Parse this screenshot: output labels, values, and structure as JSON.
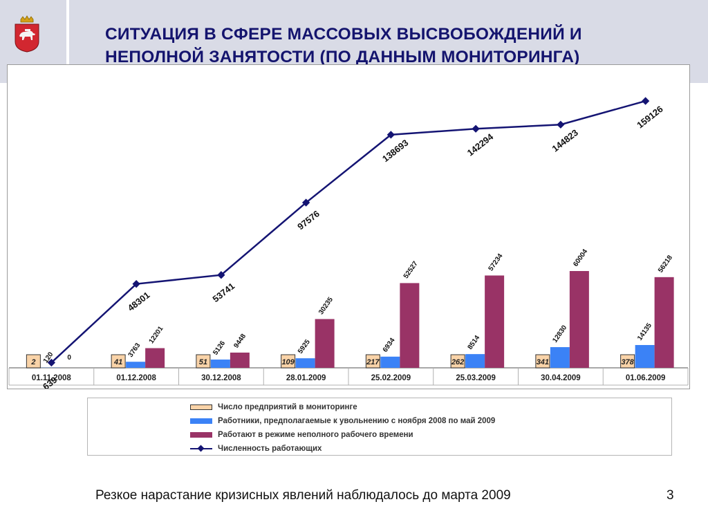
{
  "title_lines": [
    "СИТУАЦИЯ В СФЕРЕ МАССОВЫХ ВЫСВОБОЖДЕНИЙ И",
    "НЕПОЛНОЙ ЗАНЯТОСТИ (ПО ДАННЫМ МОНИТОРИНГА)"
  ],
  "emblem": "perm-krai-coat-of-arms-icon",
  "chart_data": {
    "type": "bar",
    "categories": [
      "01.11.2008",
      "01.12.2008",
      "30.12.2008",
      "28.01.2009",
      "25.02.2009",
      "25.03.2009",
      "30.04.2009",
      "01.06.2009"
    ],
    "series": [
      {
        "name": "Число предприятий в мониторинге",
        "kind": "box-label",
        "values": [
          2,
          41,
          51,
          109,
          217,
          262,
          341,
          378
        ],
        "color": "#f9d3a8"
      },
      {
        "name": "Работники, предполагаемые к увольнению с ноября 2008 по май 2009",
        "kind": "bar",
        "values": [
          120,
          3763,
          5126,
          5925,
          6934,
          8514,
          12830,
          14135
        ],
        "color": "#3b82f6"
      },
      {
        "name": "Работают в режиме неполного рабочего времени",
        "kind": "bar",
        "values": [
          0,
          12201,
          9448,
          30235,
          52527,
          57234,
          60004,
          56218
        ],
        "color": "#993366"
      },
      {
        "name": "Численность работающих",
        "kind": "line",
        "values": [
          639,
          48301,
          53741,
          97576,
          138693,
          142294,
          144823,
          159126
        ],
        "color": "#141473"
      }
    ],
    "ylim": [
      0,
      160000
    ],
    "grid": false,
    "legend_position": "bottom"
  },
  "footer": {
    "caption": "Резкое нарастание кризисных явлений наблюдалось до марта 2009",
    "page_number": "3"
  }
}
